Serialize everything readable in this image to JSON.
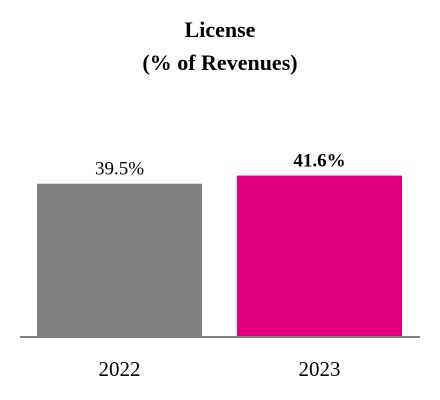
{
  "chart_data": {
    "type": "bar",
    "title": "License",
    "subtitle": "(% of Revenues)",
    "categories": [
      "2022",
      "2023"
    ],
    "values": [
      39.5,
      41.6
    ],
    "data_labels": [
      "39.5%",
      "41.6%"
    ],
    "ylim": [
      0,
      50
    ],
    "grid": false,
    "legend": "none",
    "colors": [
      "#808080",
      "#e0007f"
    ],
    "label_bold": [
      false,
      true
    ],
    "axis_color": "#7f7f7f"
  }
}
